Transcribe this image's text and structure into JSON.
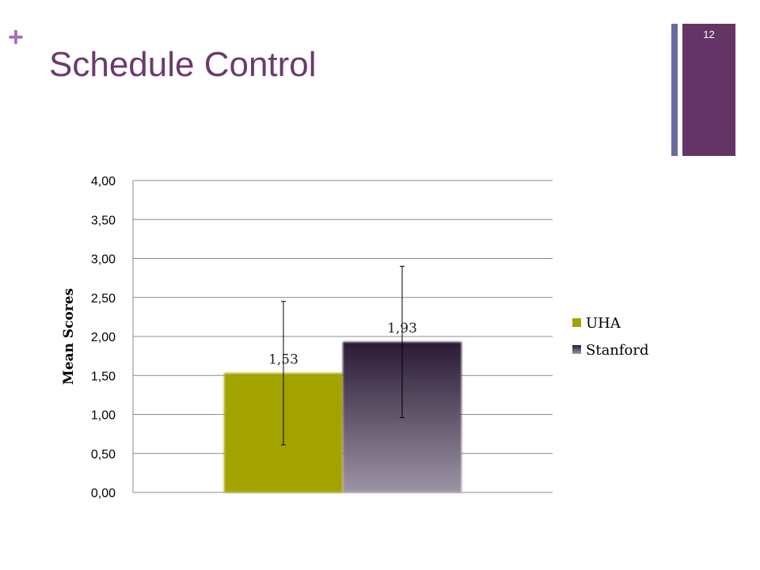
{
  "slide": {
    "plus_glyph": "+",
    "title": "Schedule Control",
    "page_number": "12"
  },
  "colors": {
    "accent_purple": "#653466",
    "accent_blue_purple": "#6a6a9e",
    "uha": "#a3a300",
    "stanford_top": "#2a1a35",
    "stanford_bottom": "#9c94a4"
  },
  "chart_data": {
    "type": "bar",
    "title": "",
    "xlabel": "",
    "ylabel": "Mean Scores",
    "ylim": [
      0,
      4
    ],
    "yticks": [
      "0,00",
      "0,50",
      "1,00",
      "1,50",
      "2,00",
      "2,50",
      "3,00",
      "3,50",
      "4,00"
    ],
    "grid": true,
    "legend_position": "right",
    "series": [
      {
        "name": "UHA",
        "values": [
          1.53
        ],
        "data_label": "1,53",
        "error_low": 0.61,
        "error_high": 2.45
      },
      {
        "name": "Stanford",
        "values": [
          1.93
        ],
        "data_label": "1,93",
        "error_low": 0.96,
        "error_high": 2.9
      }
    ]
  }
}
